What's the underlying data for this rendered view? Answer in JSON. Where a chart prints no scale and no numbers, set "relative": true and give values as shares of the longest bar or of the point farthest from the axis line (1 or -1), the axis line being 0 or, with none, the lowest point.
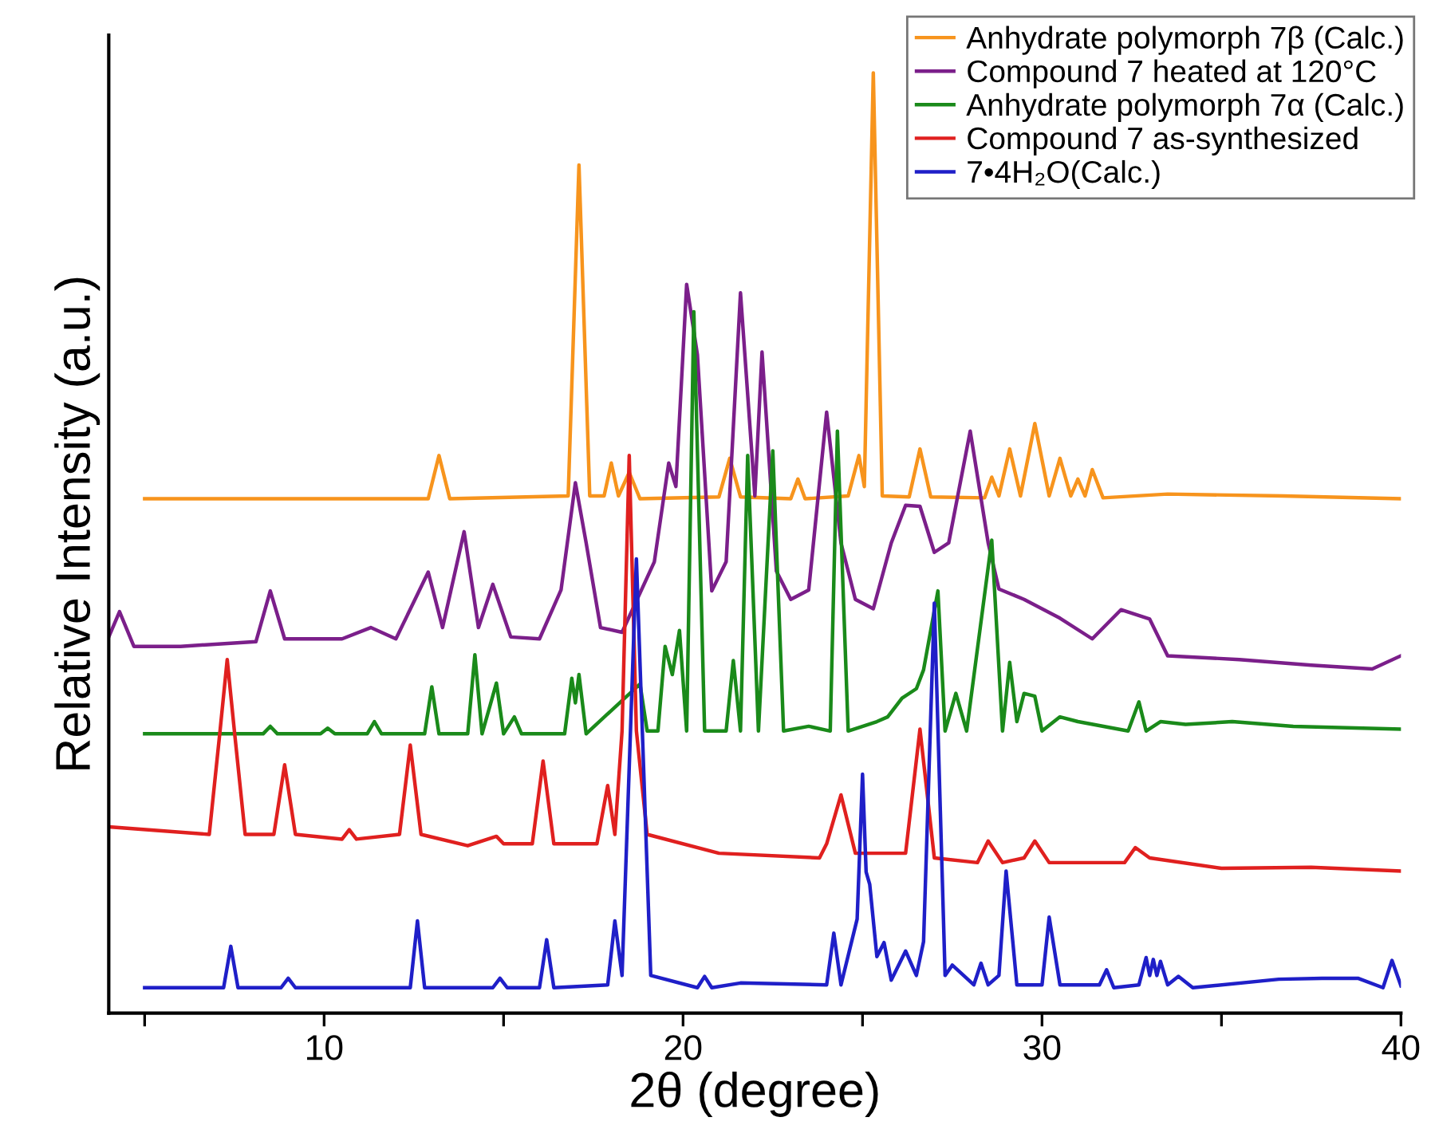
{
  "chart_data": {
    "type": "line",
    "relative": true,
    "xlabel": "2θ (degree)",
    "ylabel": "Relative Intensity (a.u.)",
    "xlim": [
      4,
      40
    ],
    "xticks": [
      {
        "value": 5,
        "label": null
      },
      10,
      {
        "value": 15,
        "label": null
      },
      20,
      {
        "value": 25,
        "label": null
      },
      30,
      {
        "value": 35,
        "label": null
      },
      40
    ],
    "tick_labels": "x",
    "grid": false,
    "legend": "top right",
    "marker": "none",
    "line_style": "solid",
    "series": [
      {
        "name": "Anhydrate polymorph 7β (Calc.)",
        "color": "#f7941d",
        "x": [
          5,
          12.9,
          13.2,
          13.5,
          16.8,
          17.1,
          17.4,
          17.8,
          18.0,
          18.2,
          18.5,
          18.8,
          21.0,
          21.3,
          21.6,
          23.0,
          23.2,
          23.4,
          24.6,
          24.9,
          25.05,
          25.3,
          25.55,
          26.3,
          26.6,
          26.9,
          28.4,
          28.6,
          28.8,
          29.1,
          29.4,
          29.8,
          30.2,
          30.5,
          30.8,
          31.0,
          31.2,
          31.4,
          31.7,
          33.5,
          36.7,
          40
        ],
        "values": [
          0.547,
          0.547,
          0.593,
          0.547,
          0.55,
          0.902,
          0.55,
          0.55,
          0.585,
          0.55,
          0.575,
          0.547,
          0.549,
          0.59,
          0.549,
          0.547,
          0.568,
          0.547,
          0.55,
          0.593,
          0.56,
          1.0,
          0.55,
          0.549,
          0.6,
          0.549,
          0.548,
          0.57,
          0.55,
          0.6,
          0.55,
          0.627,
          0.55,
          0.59,
          0.55,
          0.568,
          0.55,
          0.578,
          0.548,
          0.552,
          0.55,
          0.547
        ]
      },
      {
        "name": "Compound 7 heated at 120°C",
        "color": "#7b1f8a",
        "x": [
          4.0,
          4.3,
          4.7,
          6.0,
          8.1,
          8.5,
          8.9,
          10.5,
          11.3,
          12.0,
          12.9,
          13.3,
          13.9,
          14.3,
          14.7,
          15.2,
          16.0,
          16.6,
          17.0,
          17.3,
          17.7,
          18.3,
          19.2,
          19.6,
          19.8,
          20.1,
          20.4,
          20.8,
          21.2,
          21.6,
          22.0,
          22.2,
          22.6,
          23.0,
          23.5,
          24.0,
          24.4,
          24.8,
          25.3,
          25.8,
          26.2,
          26.6,
          27.0,
          27.4,
          28.0,
          28.5,
          28.8,
          29.5,
          30.5,
          31.4,
          32.2,
          33.0,
          33.5,
          35.5,
          37.5,
          39.2,
          40
        ],
        "values": [
          0.4,
          0.427,
          0.39,
          0.39,
          0.395,
          0.449,
          0.398,
          0.398,
          0.41,
          0.398,
          0.469,
          0.41,
          0.512,
          0.41,
          0.456,
          0.4,
          0.398,
          0.45,
          0.564,
          0.5,
          0.41,
          0.405,
          0.48,
          0.585,
          0.56,
          0.775,
          0.7,
          0.449,
          0.48,
          0.766,
          0.55,
          0.703,
          0.47,
          0.44,
          0.45,
          0.639,
          0.5,
          0.44,
          0.43,
          0.5,
          0.54,
          0.539,
          0.49,
          0.5,
          0.619,
          0.5,
          0.451,
          0.44,
          0.42,
          0.398,
          0.429,
          0.419,
          0.38,
          0.376,
          0.37,
          0.366,
          0.38
        ]
      },
      {
        "name": "Anhydrate polymorph 7α (Calc.)",
        "color": "#1a8a1a",
        "x": [
          5,
          8.3,
          8.5,
          8.7,
          9.9,
          10.1,
          10.3,
          11.2,
          11.4,
          11.6,
          12.8,
          13.0,
          13.2,
          14.0,
          14.2,
          14.4,
          14.8,
          15.0,
          15.3,
          15.5,
          16.7,
          16.9,
          17.0,
          17.1,
          17.3,
          18.8,
          19.0,
          19.3,
          19.5,
          19.7,
          19.9,
          20.1,
          20.3,
          20.6,
          21.2,
          21.4,
          21.6,
          21.8,
          22.1,
          22.5,
          22.8,
          23.5,
          24.1,
          24.3,
          24.6,
          25.4,
          25.7,
          26.1,
          26.5,
          26.7,
          27.1,
          27.3,
          27.6,
          27.9,
          28.6,
          28.9,
          29.1,
          29.3,
          29.5,
          29.8,
          30.0,
          30.5,
          31.0,
          32.4,
          32.7,
          32.9,
          33.3,
          34.0,
          35.3,
          37.0,
          40
        ],
        "values": [
          0.297,
          0.297,
          0.305,
          0.297,
          0.297,
          0.303,
          0.297,
          0.297,
          0.31,
          0.297,
          0.297,
          0.347,
          0.297,
          0.297,
          0.381,
          0.297,
          0.351,
          0.297,
          0.315,
          0.297,
          0.297,
          0.356,
          0.33,
          0.36,
          0.297,
          0.35,
          0.3,
          0.3,
          0.39,
          0.36,
          0.407,
          0.3,
          0.746,
          0.3,
          0.3,
          0.375,
          0.3,
          0.593,
          0.3,
          0.598,
          0.3,
          0.305,
          0.3,
          0.619,
          0.3,
          0.31,
          0.315,
          0.335,
          0.345,
          0.365,
          0.449,
          0.3,
          0.34,
          0.3,
          0.503,
          0.3,
          0.373,
          0.31,
          0.34,
          0.337,
          0.3,
          0.315,
          0.31,
          0.3,
          0.331,
          0.3,
          0.31,
          0.307,
          0.31,
          0.305,
          0.302
        ]
      },
      {
        "name": "Compound 7 as-synthesized",
        "color": "#e0201f",
        "x": [
          4.0,
          6.8,
          7.1,
          7.3,
          7.5,
          7.8,
          8.6,
          8.9,
          9.2,
          10.5,
          10.7,
          10.9,
          12.1,
          12.4,
          12.7,
          14.0,
          14.8,
          15.0,
          15.8,
          16.1,
          16.4,
          17.6,
          17.9,
          18.1,
          18.3,
          18.5,
          18.7,
          19.0,
          21.0,
          23.8,
          24.0,
          24.4,
          24.8,
          26.2,
          26.6,
          27.0,
          28.2,
          28.5,
          28.9,
          29.5,
          29.8,
          30.2,
          32.3,
          32.6,
          33.0,
          35.0,
          37.5,
          40
        ],
        "values": [
          0.198,
          0.19,
          0.3,
          0.376,
          0.3,
          0.19,
          0.19,
          0.264,
          0.19,
          0.185,
          0.195,
          0.185,
          0.19,
          0.285,
          0.19,
          0.178,
          0.188,
          0.18,
          0.18,
          0.268,
          0.18,
          0.18,
          0.242,
          0.19,
          0.3,
          0.593,
          0.3,
          0.19,
          0.17,
          0.165,
          0.18,
          0.232,
          0.17,
          0.17,
          0.302,
          0.165,
          0.16,
          0.183,
          0.16,
          0.165,
          0.183,
          0.16,
          0.16,
          0.176,
          0.165,
          0.154,
          0.155,
          0.151
        ]
      },
      {
        "name": "7•4H₂O(Calc.)",
        "color": "#1f1fc8",
        "x": [
          5,
          7.2,
          7.4,
          7.6,
          8.8,
          9.0,
          9.2,
          12.4,
          12.6,
          12.8,
          14.7,
          14.9,
          15.1,
          16.0,
          16.2,
          16.4,
          17.9,
          18.1,
          18.3,
          18.7,
          19.1,
          20.4,
          20.6,
          20.8,
          21.6,
          24.0,
          24.2,
          24.4,
          24.85,
          25.0,
          25.1,
          25.2,
          25.4,
          25.6,
          25.8,
          26.2,
          26.5,
          26.7,
          27.0,
          27.3,
          27.5,
          28.1,
          28.3,
          28.5,
          28.8,
          29.0,
          29.3,
          30.0,
          30.2,
          30.5,
          31.6,
          31.8,
          32.0,
          32.7,
          32.9,
          33.0,
          33.1,
          33.2,
          33.3,
          33.5,
          33.8,
          34.2,
          36.6,
          37.8,
          38.8,
          39.5,
          39.75,
          40
        ],
        "values": [
          0.027,
          0.027,
          0.071,
          0.027,
          0.027,
          0.037,
          0.027,
          0.027,
          0.098,
          0.027,
          0.027,
          0.037,
          0.027,
          0.027,
          0.078,
          0.027,
          0.03,
          0.098,
          0.04,
          0.483,
          0.04,
          0.027,
          0.039,
          0.027,
          0.032,
          0.03,
          0.085,
          0.03,
          0.1,
          0.254,
          0.15,
          0.137,
          0.06,
          0.075,
          0.035,
          0.066,
          0.04,
          0.076,
          0.436,
          0.04,
          0.051,
          0.03,
          0.053,
          0.03,
          0.04,
          0.151,
          0.03,
          0.03,
          0.102,
          0.03,
          0.03,
          0.046,
          0.027,
          0.03,
          0.059,
          0.04,
          0.057,
          0.04,
          0.055,
          0.03,
          0.039,
          0.027,
          0.036,
          0.037,
          0.037,
          0.027,
          0.056,
          0.029
        ]
      }
    ]
  }
}
